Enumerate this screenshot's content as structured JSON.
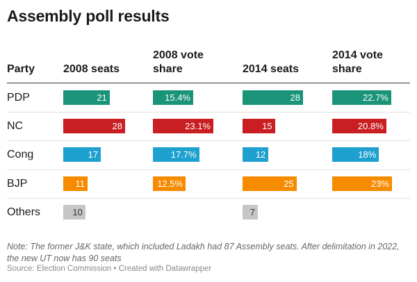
{
  "title": "Assembly poll results",
  "headers": {
    "party": "Party",
    "seats_2008": "2008 seats",
    "share_2008_line1": "2008 vote",
    "share_2008_line2": "share",
    "seats_2014": "2014 seats",
    "share_2014_line1": "2014 vote",
    "share_2014_line2": "share"
  },
  "note": "Note: The former J&K state, which included Ladakh had 87 Assembly seats. After delimitation in 2022, the new UT now has 90 seats",
  "source": "Source: Election Commission • Created with Datawrapper",
  "colors": {
    "PDP": "#1a9478",
    "NC": "#c91e22",
    "Cong": "#1fa1d0",
    "BJP": "#f78b00",
    "Others": "#c6c6c6"
  },
  "chart_data": {
    "type": "table",
    "title": "Assembly poll results",
    "columns": [
      "Party",
      "2008 seats",
      "2008 vote share",
      "2014 seats",
      "2014 vote share"
    ],
    "rows": [
      {
        "party": "PDP",
        "seats_2008": 21,
        "share_2008": 15.4,
        "seats_2014": 28,
        "share_2014": 22.7,
        "labels": {
          "seats_2008": "21",
          "share_2008": "15.4%",
          "seats_2014": "28",
          "share_2014": "22.7%"
        }
      },
      {
        "party": "NC",
        "seats_2008": 28,
        "share_2008": 23.1,
        "seats_2014": 15,
        "share_2014": 20.8,
        "labels": {
          "seats_2008": "28",
          "share_2008": "23.1%",
          "seats_2014": "15",
          "share_2014": "20.8%"
        }
      },
      {
        "party": "Cong",
        "seats_2008": 17,
        "share_2008": 17.7,
        "seats_2014": 12,
        "share_2014": 18,
        "labels": {
          "seats_2008": "17",
          "share_2008": "17.7%",
          "seats_2014": "12",
          "share_2014": "18%"
        }
      },
      {
        "party": "BJP",
        "seats_2008": 11,
        "share_2008": 12.5,
        "seats_2014": 25,
        "share_2014": 23,
        "labels": {
          "seats_2008": "11",
          "share_2008": "12.5%",
          "seats_2014": "25",
          "share_2014": "23%"
        }
      },
      {
        "party": "Others",
        "seats_2008": 10,
        "share_2008": null,
        "seats_2014": 7,
        "share_2014": null,
        "labels": {
          "seats_2008": "10",
          "share_2008": "",
          "seats_2014": "7",
          "share_2014": ""
        }
      }
    ]
  }
}
